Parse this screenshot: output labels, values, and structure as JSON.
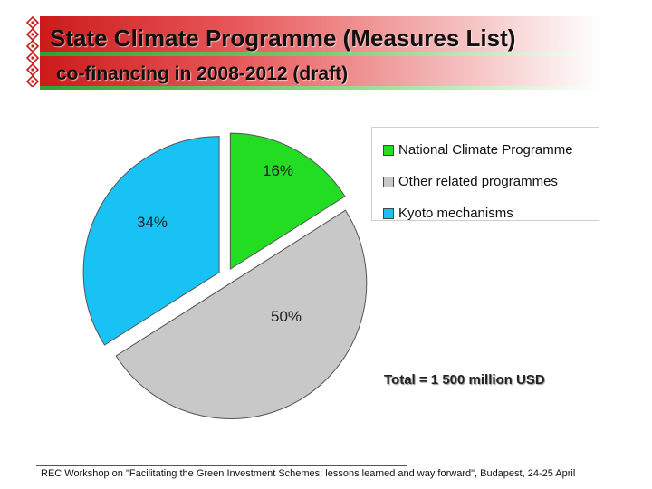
{
  "header": {
    "title": "State Climate Programme (Measures List)",
    "subtitle": "co-financing in 2008-2012 (draft)"
  },
  "colors": {
    "ornament": "#cc1a1a",
    "slice_border": "#555555"
  },
  "chart_data": {
    "type": "pie",
    "slices": [
      {
        "name": "National Climate Programme",
        "value": 16,
        "label": "16%",
        "color": "#22dd22"
      },
      {
        "name": "Other related programmes",
        "value": 50,
        "label": "50%",
        "color": "#c8c8c8"
      },
      {
        "name": "Kyoto mechanisms",
        "value": 34,
        "label": "34%",
        "color": "#19c2f5"
      }
    ],
    "legend_position": "top-right",
    "annotation": "Total  = 1 500 million USD"
  },
  "footer": {
    "text": "REC Workshop on \"Facilitating the Green Investment Schemes: lessons learned and way forward\", Budapest, 24-25 April"
  }
}
